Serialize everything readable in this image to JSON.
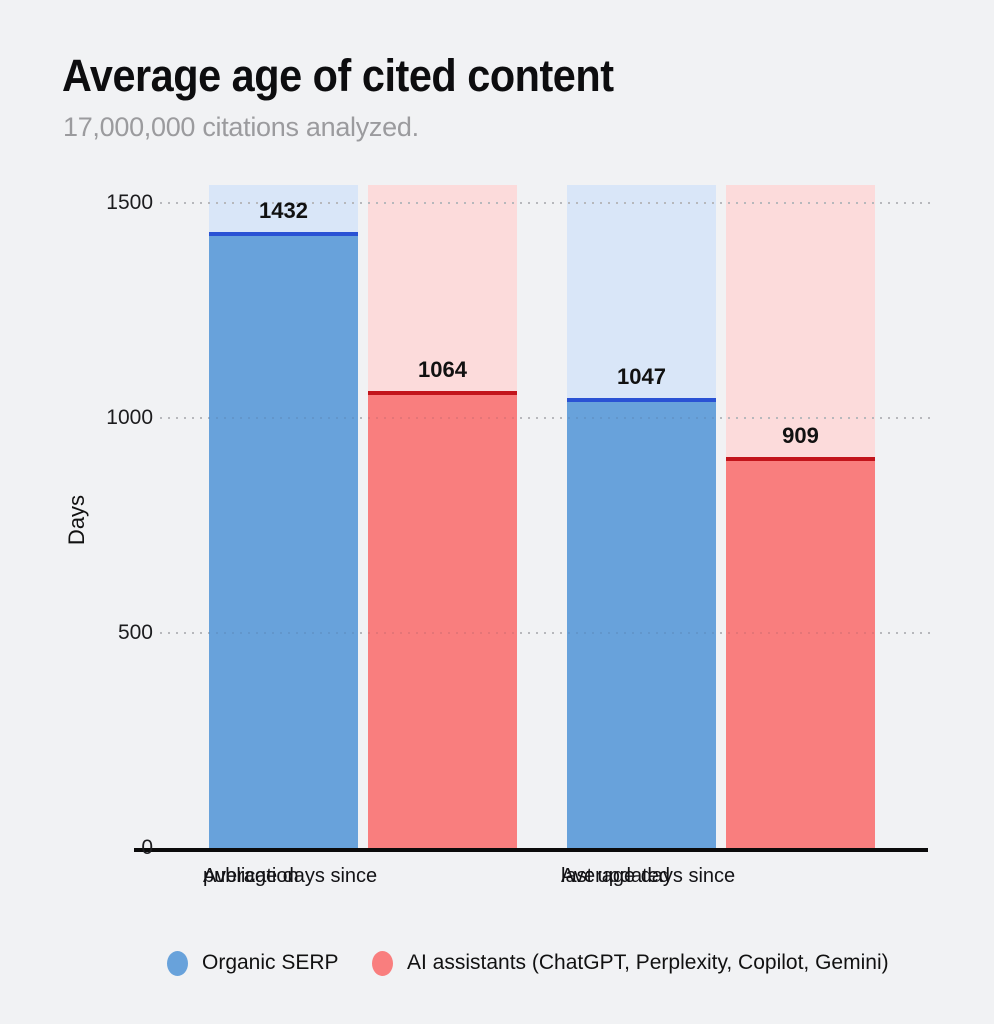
{
  "header": {
    "title": "Average age of cited content",
    "subtitle": "17,000,000 citations analyzed."
  },
  "chart_data": {
    "type": "bar",
    "title": "Average age of cited content",
    "subtitle": "17,000,000 citations analyzed.",
    "ylabel": "Days",
    "xlabel": "",
    "ylim": [
      0,
      1542
    ],
    "yticks": [
      0,
      500,
      1000,
      1500
    ],
    "grid": "dotted-horizontal",
    "legend_position": "bottom",
    "categories": [
      [
        "Average days since",
        "publication"
      ],
      [
        "Average days since",
        "last updated"
      ]
    ],
    "series": [
      {
        "name": "Organic SERP",
        "values": [
          1432,
          1047
        ],
        "bar_color": "#68a2db",
        "edge_color": "#2a52d4",
        "track_color": "#d9e6f8"
      },
      {
        "name": "AI assistants (ChatGPT, Perplexity, Copilot, Gemini)",
        "values": [
          1064,
          909
        ],
        "bar_color": "#f97e7e",
        "edge_color": "#c2141b",
        "track_color": "#fcdbdb"
      }
    ]
  },
  "colors": {
    "background": "#f1f2f4",
    "grid_dot": "#c7c8cb",
    "grid_dot_overlay": "rgba(40,40,60,0.10)",
    "axis_line": "#0b0b0b",
    "tick_text": "#1c1c1e",
    "title_text": "#0d0d0f",
    "subtitle_text": "#9b9b9e"
  }
}
